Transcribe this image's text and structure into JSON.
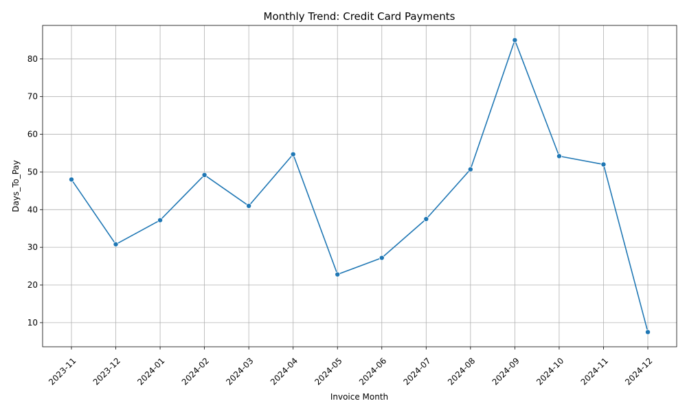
{
  "chart_data": {
    "type": "line",
    "title": "Monthly Trend: Credit Card Payments",
    "xlabel": "Invoice Month",
    "ylabel": "Days_To_Pay",
    "categories": [
      "2023-11",
      "2023-12",
      "2024-01",
      "2024-02",
      "2024-03",
      "2024-04",
      "2024-05",
      "2024-06",
      "2024-07",
      "2024-08",
      "2024-09",
      "2024-10",
      "2024-11",
      "2024-12"
    ],
    "series": [
      {
        "values": [
          48.0,
          30.8,
          37.2,
          49.2,
          41.0,
          54.7,
          22.8,
          27.2,
          37.5,
          50.7,
          85.0,
          54.2,
          52.0,
          7.5
        ],
        "color": "#1f77b4",
        "marker": "circle"
      }
    ],
    "ylim": [
      3.6,
      88.9
    ],
    "yticks": [
      10,
      20,
      30,
      40,
      50,
      60,
      70,
      80
    ],
    "grid": true,
    "legend": "none",
    "xtick_rotation": 45
  }
}
